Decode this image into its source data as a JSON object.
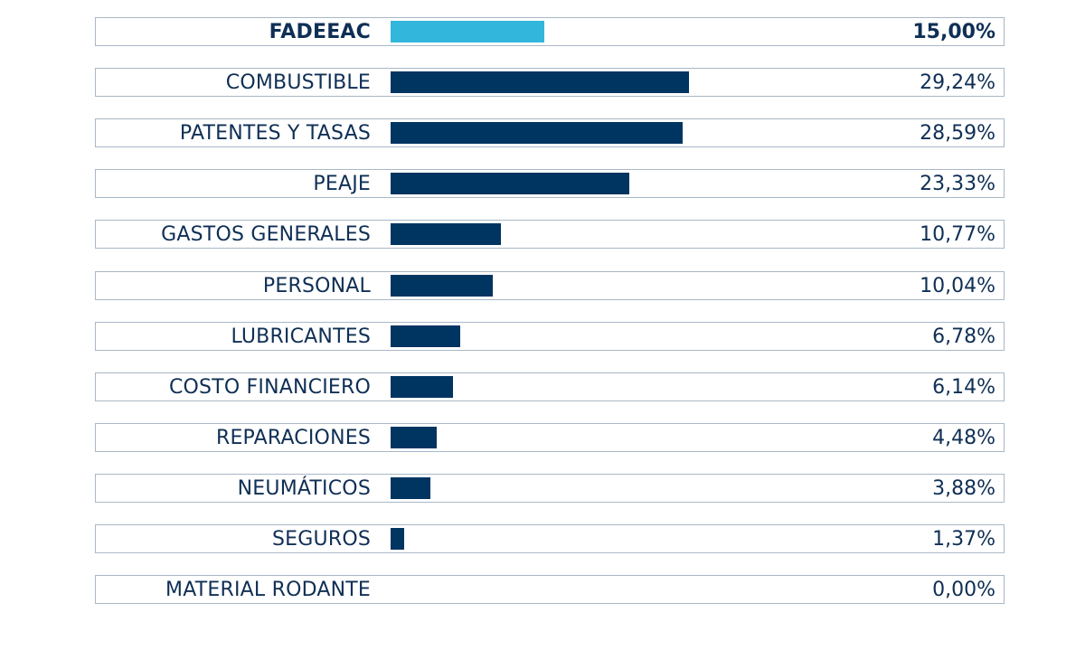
{
  "chart_data": {
    "type": "bar",
    "orientation": "horizontal",
    "categories": [
      "FADEEAC",
      "COMBUSTIBLE",
      "PATENTES Y TASAS",
      "PEAJE",
      "GASTOS GENERALES",
      "PERSONAL",
      "LUBRICANTES",
      "COSTO FINANCIERO",
      "REPARACIONES",
      "NEUMÁTICOS",
      "SEGUROS",
      "MATERIAL RODANTE"
    ],
    "values": [
      15.0,
      29.24,
      28.59,
      23.33,
      10.77,
      10.04,
      6.78,
      6.14,
      4.48,
      3.88,
      1.37,
      0.0
    ],
    "value_labels": [
      "15,00%",
      "29,24%",
      "28,59%",
      "23,33%",
      "10,77%",
      "10,04%",
      "6,78%",
      "6,14%",
      "4,48%",
      "3,88%",
      "1,37%",
      "0,00%"
    ],
    "highlight_index": 0,
    "colors": {
      "highlight": "#33b6dc",
      "bar": "#003461",
      "text": "#0f2f55",
      "border": "#a9b8c6"
    },
    "grid": false,
    "legend": "none"
  }
}
